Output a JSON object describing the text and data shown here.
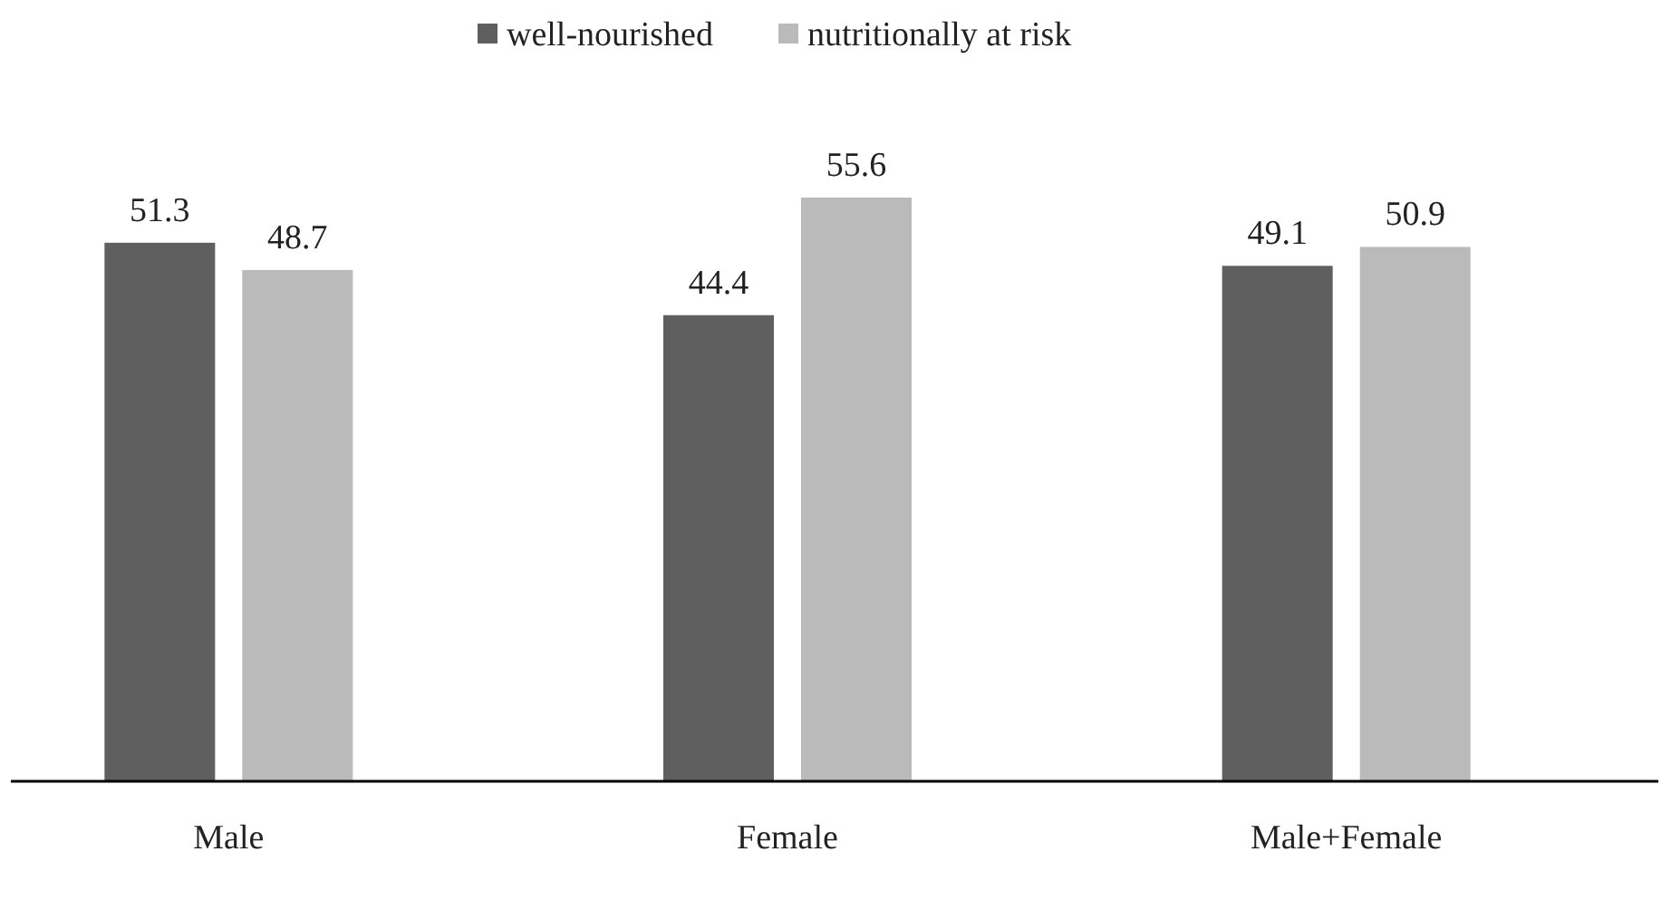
{
  "chart_data": {
    "type": "bar",
    "categories": [
      "Male",
      "Female",
      "Male+Female"
    ],
    "series": [
      {
        "name": "well-nourished",
        "color": "#5f5f5f",
        "values": [
          51.3,
          44.4,
          49.1
        ]
      },
      {
        "name": "nutritionally at risk",
        "color": "#bababa",
        "values": [
          48.7,
          55.6,
          50.9
        ]
      }
    ],
    "data_labels": true,
    "legend": "top"
  }
}
